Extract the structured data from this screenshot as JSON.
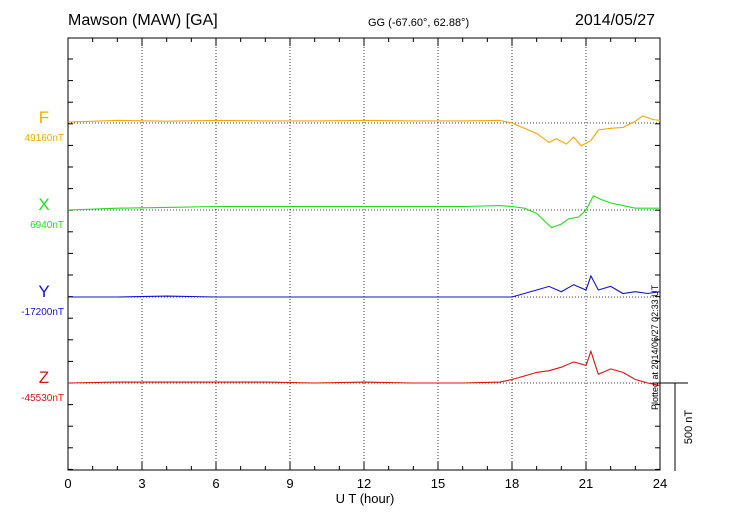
{
  "header": {
    "station": "Mawson (MAW)  [GA]",
    "coords": "GG (-67.60°,  62.88°)",
    "date": "2014/05/27"
  },
  "plotted_note": "Plotted at 2014/06/27 02:33 UT",
  "chart_data": {
    "type": "line",
    "xlabel": "U T (hour)",
    "xlim": [
      0,
      24
    ],
    "xticks": [
      0,
      3,
      6,
      9,
      12,
      15,
      18,
      21,
      24
    ],
    "scale_bar": {
      "label": "500 nT",
      "value_nT": 500
    },
    "grid": true,
    "series": [
      {
        "name": "F",
        "baseline_label": "49160nT",
        "color": "#f5a800",
        "x": [
          0,
          2,
          4,
          6,
          8,
          10,
          12,
          14,
          16,
          17.5,
          18,
          18.5,
          19,
          19.5,
          19.8,
          20.2,
          20.5,
          20.8,
          21.2,
          21.5,
          22,
          22.5,
          23,
          23.3,
          23.7,
          24
        ],
        "y": [
          5,
          15,
          10,
          15,
          12,
          12,
          15,
          12,
          12,
          15,
          0,
          -30,
          -60,
          -110,
          -90,
          -120,
          -80,
          -130,
          -100,
          -40,
          -30,
          -25,
          10,
          40,
          20,
          15
        ]
      },
      {
        "name": "X",
        "baseline_label": "6940nT",
        "color": "#22dd22",
        "x": [
          0,
          2,
          4,
          6,
          8,
          10,
          12,
          14,
          16,
          17.5,
          18,
          18.5,
          19,
          19.3,
          19.6,
          20,
          20.3,
          20.7,
          21,
          21.3,
          21.6,
          22,
          22.5,
          23,
          24
        ],
        "y": [
          0,
          10,
          15,
          20,
          20,
          20,
          20,
          20,
          20,
          25,
          20,
          10,
          -20,
          -60,
          -100,
          -80,
          -50,
          -40,
          0,
          80,
          60,
          40,
          25,
          10,
          10
        ]
      },
      {
        "name": "Y",
        "baseline_label": "-17200nT",
        "color": "#1111dd",
        "x": [
          0,
          2,
          4,
          6,
          8,
          10,
          12,
          14,
          16,
          17.5,
          18,
          18.5,
          19,
          19.5,
          20,
          20.5,
          21,
          21.2,
          21.5,
          22,
          22.5,
          23,
          23.5,
          24
        ],
        "y": [
          0,
          0,
          5,
          0,
          0,
          0,
          0,
          0,
          0,
          0,
          0,
          20,
          40,
          60,
          30,
          70,
          40,
          120,
          40,
          60,
          20,
          30,
          20,
          30
        ]
      },
      {
        "name": "Z",
        "baseline_label": "-45530nT",
        "color": "#e01010",
        "x": [
          0,
          2,
          4,
          6,
          8,
          10,
          12,
          14,
          16,
          17.5,
          18,
          18.5,
          19,
          19.5,
          20,
          20.5,
          21,
          21.2,
          21.5,
          22,
          22.5,
          23,
          23.5,
          24
        ],
        "y": [
          0,
          5,
          5,
          5,
          5,
          0,
          5,
          0,
          0,
          5,
          20,
          40,
          60,
          70,
          90,
          120,
          100,
          180,
          50,
          80,
          60,
          20,
          0,
          -15
        ]
      }
    ]
  }
}
